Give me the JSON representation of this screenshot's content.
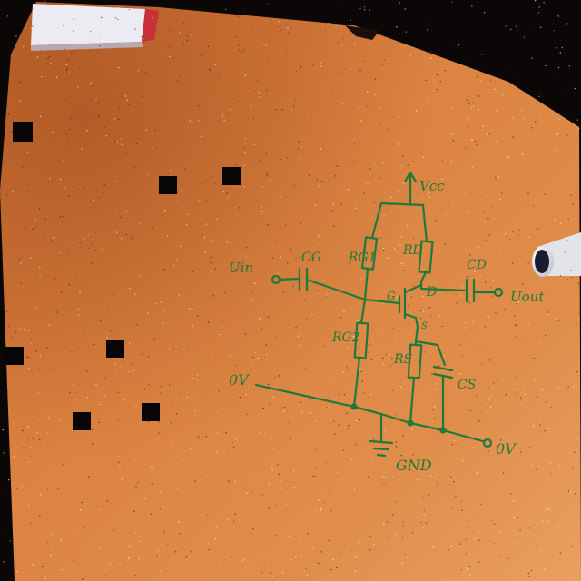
{
  "colors": {
    "ink": "#1f7a3a",
    "paper_light": "#e28d4a",
    "paper_dark": "#b85a22",
    "background": "#0b0706",
    "card": "#ecebf1",
    "card_edge": "#c8303a"
  },
  "circuit": {
    "labels": {
      "vcc": "Vcc",
      "u_in": "Uin",
      "cg": "CG",
      "rg1": "RG1",
      "rd": "RD",
      "cd": "CD",
      "u_out": "Uout",
      "g": "G",
      "d": "D",
      "s": "S",
      "rg2": "RG2",
      "rs": "RS",
      "cs": "CS",
      "zero_v_left": "0V",
      "zero_v_right": "0V",
      "gnd": "GND"
    }
  }
}
